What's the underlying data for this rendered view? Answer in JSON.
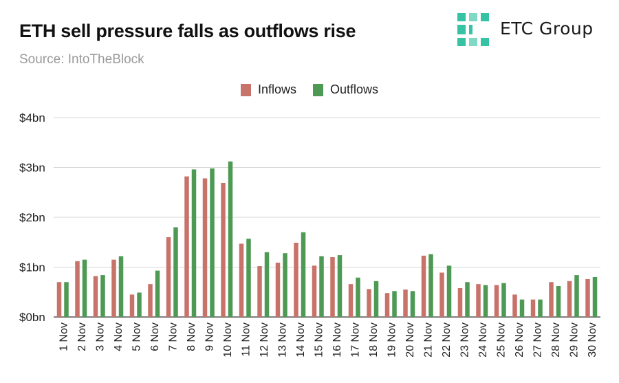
{
  "header": {
    "title": "ETH sell pressure falls as outflows rise",
    "subtitle": "Source: IntoTheBlock"
  },
  "logo": {
    "text": "ETC Group",
    "color": "#35c3a3"
  },
  "chart_data": {
    "type": "bar",
    "title": "ETH sell pressure falls as outflows rise",
    "subtitle": "Source: IntoTheBlock",
    "xlabel": "",
    "ylabel": "",
    "categories": [
      "1 Nov",
      "2 Nov",
      "3 Nov",
      "4 Nov",
      "5 Nov",
      "6 Nov",
      "7 Nov",
      "8 Nov",
      "9 Nov",
      "10 Nov",
      "11 Nov",
      "12 Nov",
      "13 Nov",
      "14 Nov",
      "15 Nov",
      "16 Nov",
      "17 Nov",
      "18 Nov",
      "19 Nov",
      "20 Nov",
      "21 Nov",
      "22 Nov",
      "23 Nov",
      "24 Nov",
      "25 Nov",
      "26 Nov",
      "27 Nov",
      "28 Nov",
      "29 Nov",
      "30 Nov"
    ],
    "series": [
      {
        "name": "Inflows",
        "color": "#c8736a",
        "values": [
          0.7,
          1.12,
          0.82,
          1.15,
          0.45,
          0.66,
          1.6,
          2.82,
          2.78,
          2.69,
          1.47,
          1.02,
          1.09,
          1.49,
          1.03,
          1.2,
          0.66,
          0.56,
          0.48,
          0.55,
          1.23,
          0.89,
          0.58,
          0.66,
          0.64,
          0.45,
          0.35,
          0.7,
          0.72,
          0.76
        ]
      },
      {
        "name": "Outflows",
        "color": "#4e9a55",
        "values": [
          0.7,
          1.15,
          0.84,
          1.22,
          0.49,
          0.93,
          1.8,
          2.96,
          2.98,
          3.12,
          1.57,
          1.3,
          1.28,
          1.7,
          1.22,
          1.24,
          0.79,
          0.72,
          0.52,
          0.52,
          1.26,
          1.03,
          0.7,
          0.64,
          0.68,
          0.35,
          0.35,
          0.62,
          0.84,
          0.8
        ]
      }
    ],
    "ylim": [
      0,
      4
    ],
    "yticks": [
      0,
      1,
      2,
      3,
      4
    ],
    "ytick_labels": [
      "$0bn",
      "$1bn",
      "$2bn",
      "$3bn",
      "$4bn"
    ],
    "grid": true,
    "legend": "top-center"
  }
}
